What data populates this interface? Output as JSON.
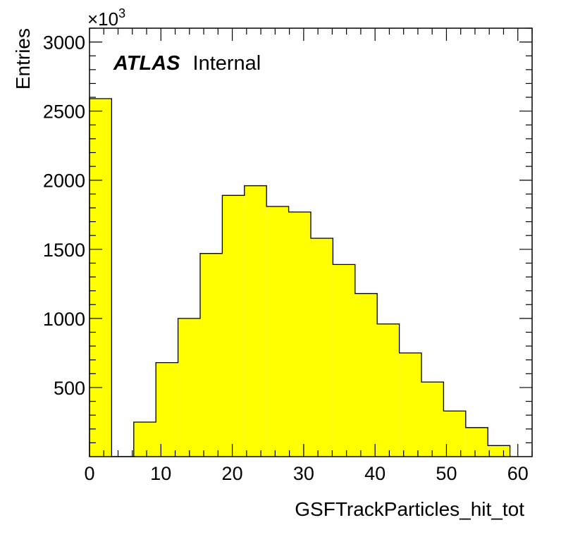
{
  "chart_data": {
    "type": "bar",
    "title": "",
    "xlabel": "GSFTrackParticles_hit_tot",
    "ylabel": "Entries",
    "y_multiplier": "×10",
    "y_multiplier_exponent": "3",
    "xlim": [
      0,
      62
    ],
    "ylim": [
      0,
      3100
    ],
    "x_ticks": [
      0,
      10,
      20,
      30,
      40,
      50,
      60
    ],
    "x_tick_labels": [
      "0",
      "10",
      "20",
      "30",
      "40",
      "50",
      "60"
    ],
    "y_ticks": [
      500,
      1000,
      1500,
      2000,
      2500,
      3000
    ],
    "y_tick_labels": [
      "500",
      "1000",
      "1500",
      "2000",
      "2500",
      "3000"
    ],
    "bin_edges": [
      0,
      3.1,
      6.2,
      9.3,
      12.4,
      15.5,
      18.6,
      21.7,
      24.8,
      27.9,
      31.0,
      34.1,
      37.2,
      40.3,
      43.4,
      46.5,
      49.6,
      52.7,
      55.8,
      58.9
    ],
    "values": [
      2590,
      0,
      250,
      680,
      1000,
      1470,
      1890,
      1960,
      1810,
      1770,
      1580,
      1390,
      1180,
      960,
      750,
      540,
      330,
      210,
      80
    ],
    "bar_color": "#ffff00",
    "edge_color": "#000000",
    "grid": false,
    "legend": "none",
    "annotation": {
      "bold_italic": "ATLAS",
      "normal": "Internal",
      "placement": "top-left"
    }
  }
}
